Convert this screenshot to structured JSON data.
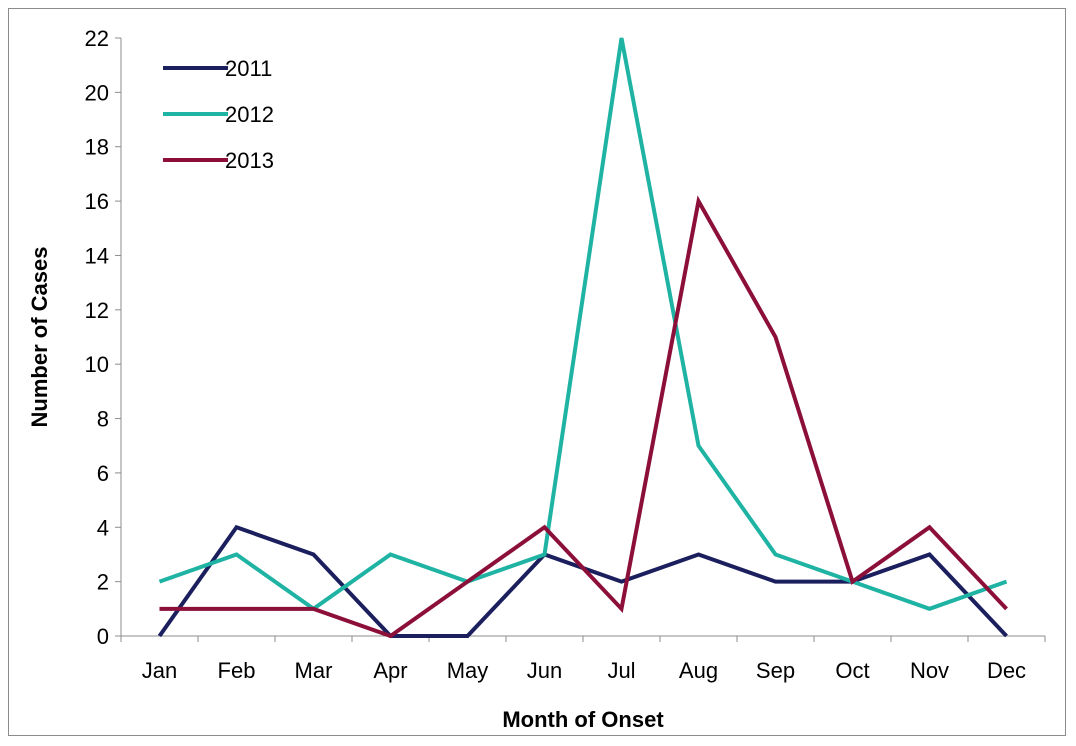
{
  "chart_data": {
    "type": "line",
    "title": "",
    "xlabel": "Month of Onset",
    "ylabel": "Number of Cases",
    "categories": [
      "Jan",
      "Feb",
      "Mar",
      "Apr",
      "May",
      "Jun",
      "Jul",
      "Aug",
      "Sep",
      "Oct",
      "Nov",
      "Dec"
    ],
    "ylim": [
      0,
      22
    ],
    "yticks": [
      0,
      2,
      4,
      6,
      8,
      10,
      12,
      14,
      16,
      18,
      20,
      22
    ],
    "grid": false,
    "legend_position": "top-left",
    "series": [
      {
        "name": "2011",
        "color": "#1b1f5e",
        "values": [
          0,
          4,
          3,
          0,
          0,
          3,
          2,
          3,
          2,
          2,
          3,
          0
        ]
      },
      {
        "name": "2012",
        "color": "#1fb3a3",
        "values": [
          2,
          3,
          1,
          3,
          2,
          3,
          22,
          7,
          3,
          2,
          1,
          2
        ]
      },
      {
        "name": "2013",
        "color": "#8c0f3a",
        "values": [
          1,
          1,
          1,
          0,
          2,
          4,
          1,
          16,
          11,
          2,
          4,
          1
        ]
      }
    ]
  }
}
